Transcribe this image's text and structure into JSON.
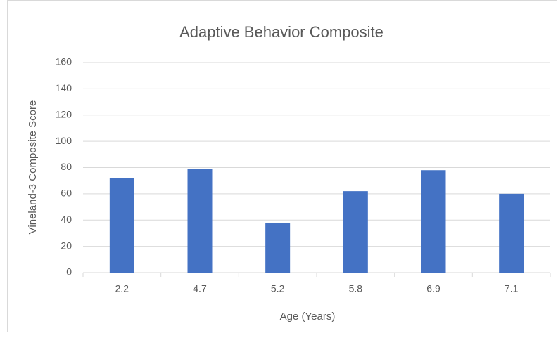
{
  "chart_data": {
    "type": "bar",
    "title": "Adaptive Behavior Composite",
    "x_label": "Age (Years)",
    "y_label": "Vineland-3 Composite Score",
    "categories": [
      "2.2",
      "4.7",
      "5.2",
      "5.8",
      "6.9",
      "7.1"
    ],
    "values": [
      72,
      79,
      38,
      62,
      78,
      60
    ],
    "color": "#4472c4",
    "ylim": [
      0,
      160
    ],
    "yticks": [
      0,
      20,
      40,
      60,
      80,
      100,
      120,
      140,
      160
    ],
    "grid": true
  }
}
